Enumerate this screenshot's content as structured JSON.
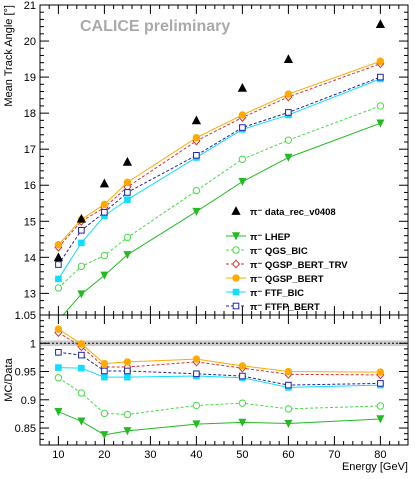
{
  "chart_data": [
    {
      "type": "line",
      "panel": "main",
      "watermark": "CALICE preliminary",
      "ylabel": "Mean Track Angle [°]",
      "xlim": [
        6,
        86
      ],
      "ylim": [
        12.4,
        21
      ],
      "y_ticks": [
        "13",
        "14",
        "15",
        "16",
        "17",
        "18",
        "19",
        "20",
        "21"
      ],
      "grid": false,
      "legend_position": "bottom-right",
      "data": {
        "name": "π⁻ data_rec_v0408",
        "x": [
          10,
          15,
          20,
          25,
          40,
          50,
          60,
          80
        ],
        "y": [
          14.0,
          15.07,
          16.05,
          16.65,
          17.8,
          18.7,
          19.5,
          20.47
        ]
      },
      "series": [
        {
          "name": "π⁻ LHEP",
          "color": "#22bb22",
          "dash": "",
          "marker": "triangle-down",
          "x": [
            10,
            15,
            20,
            25,
            40,
            50,
            60,
            80
          ],
          "y": [
            12.25,
            12.98,
            13.5,
            14.07,
            15.27,
            16.1,
            16.77,
            17.72
          ]
        },
        {
          "name": "π⁻ QGS_BIC",
          "color": "#44dd44",
          "dash": "3,2",
          "marker": "circle-open",
          "x": [
            10,
            15,
            20,
            25,
            40,
            50,
            60,
            80
          ],
          "y": [
            13.15,
            13.75,
            14.05,
            14.55,
            15.85,
            16.72,
            17.25,
            18.2
          ]
        },
        {
          "name": "π⁻ QGSP_BERT_TRV",
          "color": "#dd3333",
          "dash": "3,2",
          "marker": "diamond-open",
          "x": [
            10,
            15,
            20,
            25,
            40,
            50,
            60,
            80
          ],
          "y": [
            14.28,
            15.0,
            15.38,
            15.95,
            17.23,
            17.88,
            18.45,
            19.37
          ]
        },
        {
          "name": "π⁻ QGSP_BERT",
          "color": "#ffaa00",
          "dash": "",
          "marker": "circle-filled",
          "x": [
            10,
            15,
            20,
            25,
            40,
            50,
            60,
            80
          ],
          "y": [
            14.35,
            15.05,
            15.47,
            16.08,
            17.32,
            17.95,
            18.53,
            19.44
          ]
        },
        {
          "name": "π⁻ FTF_BIC",
          "color": "#11ddff",
          "dash": "",
          "marker": "square-filled",
          "x": [
            10,
            15,
            20,
            25,
            40,
            50,
            60,
            80
          ],
          "y": [
            13.4,
            14.4,
            15.15,
            15.6,
            16.77,
            17.55,
            17.95,
            18.95
          ]
        },
        {
          "name": "π⁻ FTFP_BERT",
          "color": "#2222aa",
          "dash": "3,2",
          "marker": "square-open",
          "x": [
            10,
            15,
            20,
            25,
            40,
            50,
            60,
            80
          ],
          "y": [
            13.8,
            14.75,
            15.25,
            15.8,
            16.83,
            17.6,
            18.02,
            19.0
          ]
        }
      ]
    },
    {
      "type": "line",
      "panel": "ratio",
      "xlabel": "Energy [GeV]",
      "ylabel": "MC/Data",
      "xlim": [
        6,
        86
      ],
      "ylim": [
        0.82,
        1.05
      ],
      "x_ticks": [
        "10",
        "20",
        "30",
        "40",
        "50",
        "60",
        "70",
        "80"
      ],
      "y_ticks": [
        "0.85",
        "0.9",
        "0.95",
        "1",
        "1.05"
      ],
      "reference_line": 1,
      "series": [
        {
          "name": "π⁻ LHEP",
          "x": [
            10,
            15,
            20,
            25,
            40,
            50,
            60,
            80
          ],
          "y": [
            0.879,
            0.862,
            0.838,
            0.845,
            0.857,
            0.86,
            0.858,
            0.866
          ]
        },
        {
          "name": "π⁻ QGS_BIC",
          "x": [
            10,
            15,
            20,
            25,
            40,
            50,
            60,
            80
          ],
          "y": [
            0.939,
            0.912,
            0.876,
            0.874,
            0.89,
            0.894,
            0.884,
            0.889
          ]
        },
        {
          "name": "π⁻ QGSP_BERT_TRV",
          "x": [
            10,
            15,
            20,
            25,
            40,
            50,
            60,
            80
          ],
          "y": [
            1.019,
            0.994,
            0.958,
            0.958,
            0.967,
            0.956,
            0.945,
            0.944
          ]
        },
        {
          "name": "π⁻ QGSP_BERT",
          "x": [
            10,
            15,
            20,
            25,
            40,
            50,
            60,
            80
          ],
          "y": [
            1.025,
            0.999,
            0.964,
            0.967,
            0.972,
            0.96,
            0.95,
            0.949
          ]
        },
        {
          "name": "π⁻ FTF_BIC",
          "x": [
            10,
            15,
            20,
            25,
            40,
            50,
            60,
            80
          ],
          "y": [
            0.957,
            0.956,
            0.94,
            0.94,
            0.942,
            0.939,
            0.922,
            0.926
          ]
        },
        {
          "name": "π⁻ FTFP_BERT",
          "x": [
            10,
            15,
            20,
            25,
            40,
            50,
            60,
            80
          ],
          "y": [
            0.984,
            0.979,
            0.951,
            0.951,
            0.946,
            0.942,
            0.926,
            0.929
          ]
        }
      ]
    }
  ]
}
